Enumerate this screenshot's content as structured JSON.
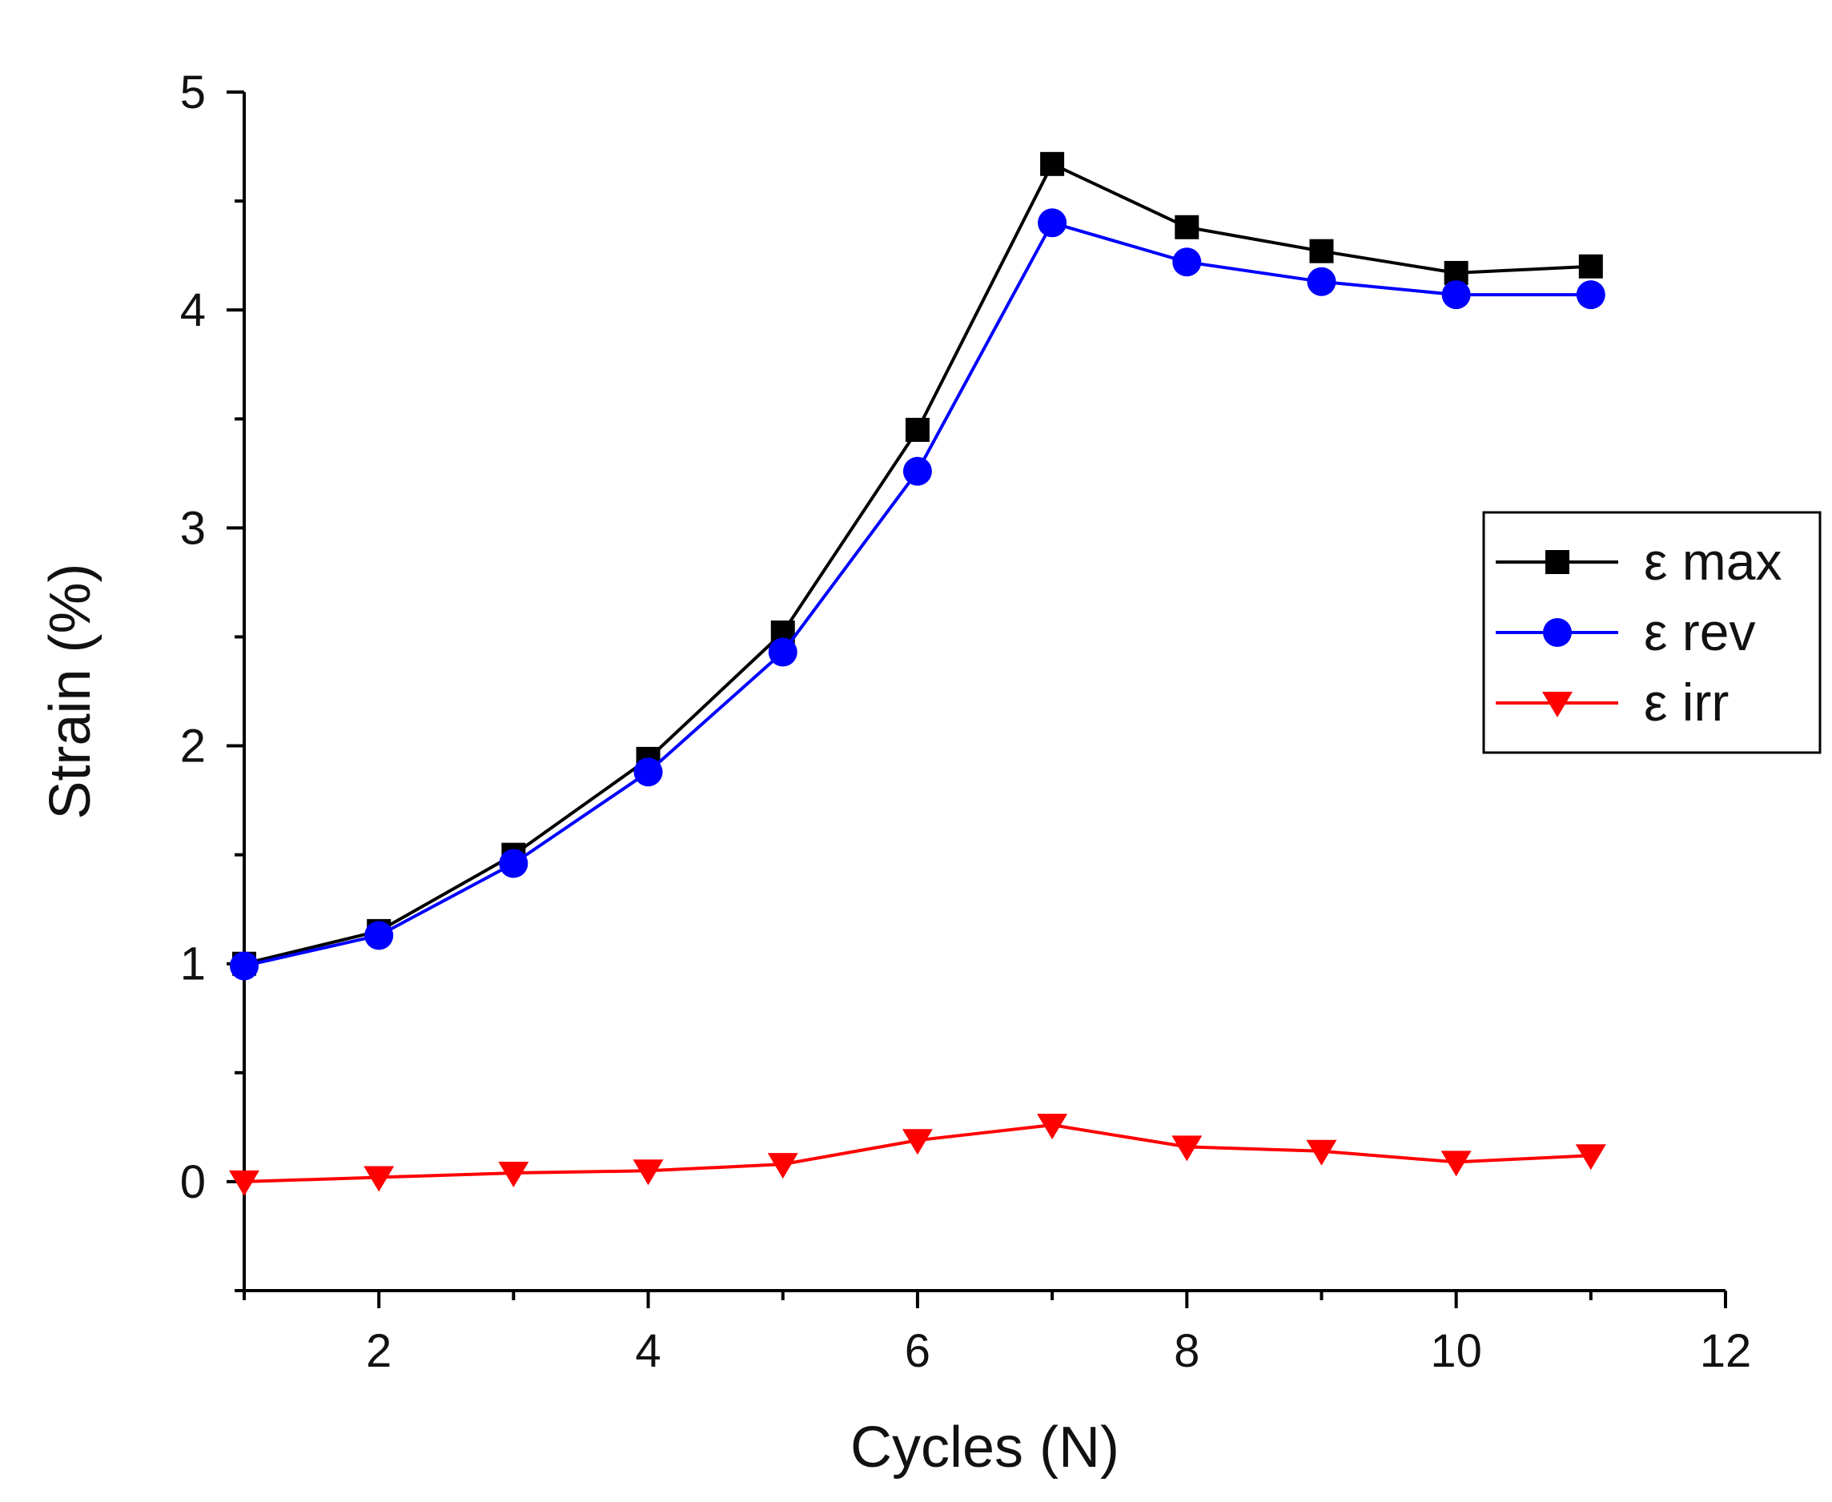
{
  "chart_data": {
    "type": "line",
    "title": "",
    "xlabel": "Cycles (N)",
    "ylabel": "Strain (%)",
    "xlim": [
      1,
      12
    ],
    "ylim": [
      -0.5,
      5
    ],
    "xticks": [
      2,
      4,
      6,
      8,
      10,
      12
    ],
    "yticks": [
      0,
      1,
      2,
      3,
      4,
      5
    ],
    "grid": false,
    "legend_position": "right",
    "x": [
      1,
      2,
      3,
      4,
      5,
      6,
      7,
      8,
      9,
      10,
      11
    ],
    "series": [
      {
        "name": "ε max",
        "color": "#000000",
        "marker": "square",
        "values": [
          1.0,
          1.15,
          1.5,
          1.94,
          2.52,
          3.45,
          4.67,
          4.38,
          4.27,
          4.17,
          4.2
        ]
      },
      {
        "name": "ε rev",
        "color": "#0000ff",
        "marker": "circle",
        "values": [
          0.99,
          1.13,
          1.46,
          1.88,
          2.43,
          3.26,
          4.4,
          4.22,
          4.13,
          4.07,
          4.07
        ]
      },
      {
        "name": "ε irr",
        "color": "#ff0000",
        "marker": "triangle-down",
        "values": [
          0.0,
          0.02,
          0.04,
          0.05,
          0.08,
          0.19,
          0.26,
          0.16,
          0.14,
          0.09,
          0.12
        ]
      }
    ]
  }
}
